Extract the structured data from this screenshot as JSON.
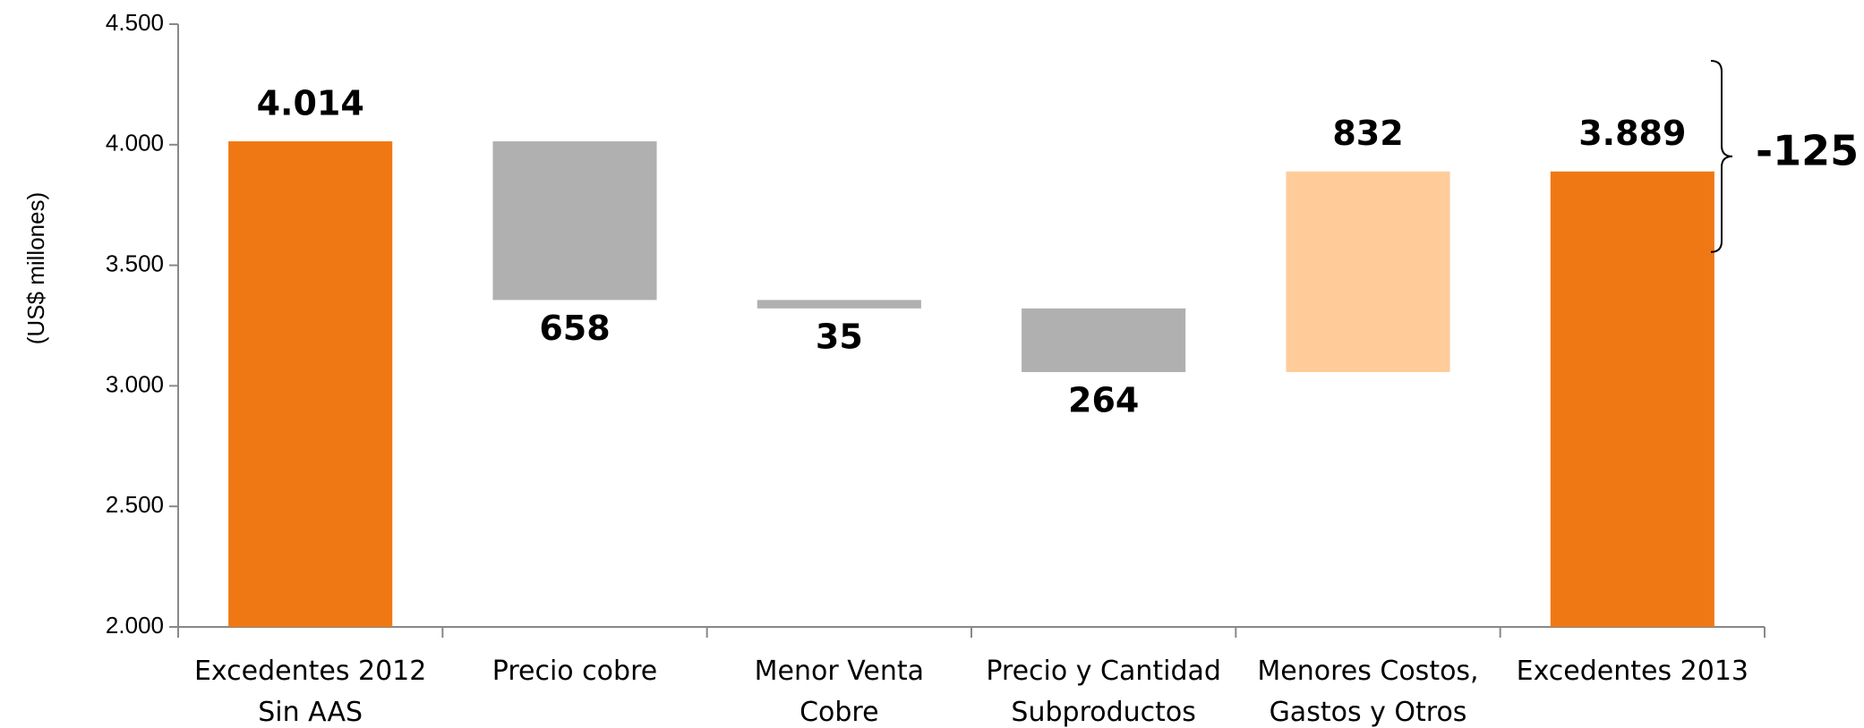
{
  "chart_data": {
    "type": "waterfall",
    "y_axis_label": "(US$ millones)",
    "categories": [
      "Excedentes 2012\nSin AAS",
      "Precio cobre",
      "Menor Venta\nCobre",
      "Precio y Cantidad\nSubproductos",
      "Menores Costos,\nGastos y Otros",
      "Excedentes 2013"
    ],
    "values": [
      4014,
      -658,
      -35,
      -264,
      832,
      3889
    ],
    "value_labels": [
      "4.014",
      "658",
      "35",
      "264",
      "832",
      "3.889"
    ],
    "measure": [
      "absolute",
      "relative",
      "relative",
      "relative",
      "relative",
      "absolute"
    ],
    "colors": {
      "absolute": "#f07814",
      "decrease": "#b0b0b0",
      "increase": "#ffcc99"
    },
    "ylim": [
      2000,
      4500
    ],
    "yticks": [
      {
        "value": 2000,
        "label": "2.000"
      },
      {
        "value": 2500,
        "label": "2.500"
      },
      {
        "value": 3000,
        "label": "3.000"
      },
      {
        "value": 3500,
        "label": "3.500"
      },
      {
        "value": 4000,
        "label": "4.000"
      },
      {
        "value": 4500,
        "label": "4.500"
      }
    ],
    "annotation": {
      "text": "-125",
      "value": -125
    },
    "grid": false
  }
}
